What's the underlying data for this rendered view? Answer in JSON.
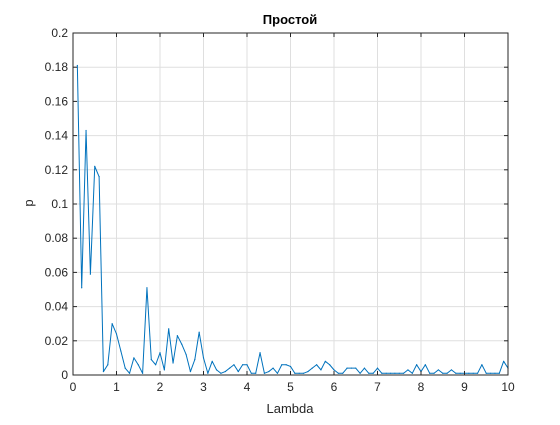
{
  "chart_data": {
    "type": "line",
    "title": "Простой",
    "xlabel": "Lambda",
    "ylabel": "p",
    "xlim": [
      0,
      10
    ],
    "ylim": [
      0,
      0.2
    ],
    "xticks": [
      0,
      1,
      2,
      3,
      4,
      5,
      6,
      7,
      8,
      9,
      10
    ],
    "xtick_labels": [
      "0",
      "1",
      "2",
      "3",
      "4",
      "5",
      "6",
      "7",
      "8",
      "9",
      "10"
    ],
    "yticks": [
      0,
      0.02,
      0.04,
      0.06,
      0.08,
      0.1,
      0.12,
      0.14,
      0.16,
      0.18,
      0.2
    ],
    "ytick_labels": [
      "0",
      "0.02",
      "0.04",
      "0.06",
      "0.08",
      "0.1",
      "0.12",
      "0.14",
      "0.16",
      "0.18",
      "0.2"
    ],
    "grid": true,
    "line_color": "#0072bd",
    "axis_color": "#262626",
    "grid_color": "#dfdfdf",
    "series": [
      {
        "x": [
          0.1,
          0.2,
          0.3,
          0.4,
          0.5,
          0.6,
          0.7,
          0.8,
          0.9,
          1.0,
          1.1,
          1.2,
          1.3,
          1.4,
          1.5,
          1.6,
          1.7,
          1.8,
          1.9,
          2.0,
          2.1,
          2.2,
          2.3,
          2.4,
          2.5,
          2.6,
          2.7,
          2.8,
          2.9,
          3.0,
          3.1,
          3.2,
          3.3,
          3.4,
          3.5,
          3.6,
          3.7,
          3.8,
          3.9,
          4.0,
          4.1,
          4.2,
          4.3,
          4.4,
          4.5,
          4.6,
          4.7,
          4.8,
          4.9,
          5.0,
          5.1,
          5.2,
          5.3,
          5.4,
          5.5,
          5.6,
          5.7,
          5.8,
          5.9,
          6.0,
          6.1,
          6.2,
          6.3,
          6.4,
          6.5,
          6.6,
          6.7,
          6.8,
          6.9,
          7.0,
          7.1,
          7.2,
          7.3,
          7.4,
          7.5,
          7.6,
          7.7,
          7.8,
          7.9,
          8.0,
          8.1,
          8.2,
          8.3,
          8.4,
          8.5,
          8.6,
          8.7,
          8.8,
          8.9,
          9.0,
          9.1,
          9.2,
          9.3,
          9.4,
          9.5,
          9.6,
          9.7,
          9.8,
          9.9,
          10.0
        ],
        "values": [
          0.181,
          0.051,
          0.143,
          0.059,
          0.122,
          0.116,
          0.002,
          0.006,
          0.03,
          0.024,
          0.014,
          0.004,
          0.001,
          0.01,
          0.006,
          0.001,
          0.051,
          0.009,
          0.006,
          0.013,
          0.003,
          0.027,
          0.007,
          0.023,
          0.018,
          0.012,
          0.002,
          0.009,
          0.025,
          0.01,
          0.001,
          0.008,
          0.003,
          0.001,
          0.002,
          0.004,
          0.006,
          0.002,
          0.006,
          0.006,
          0.001,
          0.001,
          0.013,
          0.001,
          0.002,
          0.004,
          0.001,
          0.006,
          0.006,
          0.005,
          0.001,
          0.001,
          0.001,
          0.002,
          0.004,
          0.006,
          0.003,
          0.008,
          0.006,
          0.003,
          0.001,
          0.001,
          0.004,
          0.004,
          0.004,
          0.001,
          0.004,
          0.001,
          0.001,
          0.004,
          0.001,
          0.001,
          0.001,
          0.001,
          0.001,
          0.001,
          0.003,
          0.001,
          0.006,
          0.002,
          0.006,
          0.001,
          0.001,
          0.003,
          0.001,
          0.001,
          0.003,
          0.001,
          0.001,
          0.001,
          0.001,
          0.001,
          0.001,
          0.006,
          0.001,
          0.001,
          0.001,
          0.001,
          0.008,
          0.004
        ]
      }
    ]
  }
}
